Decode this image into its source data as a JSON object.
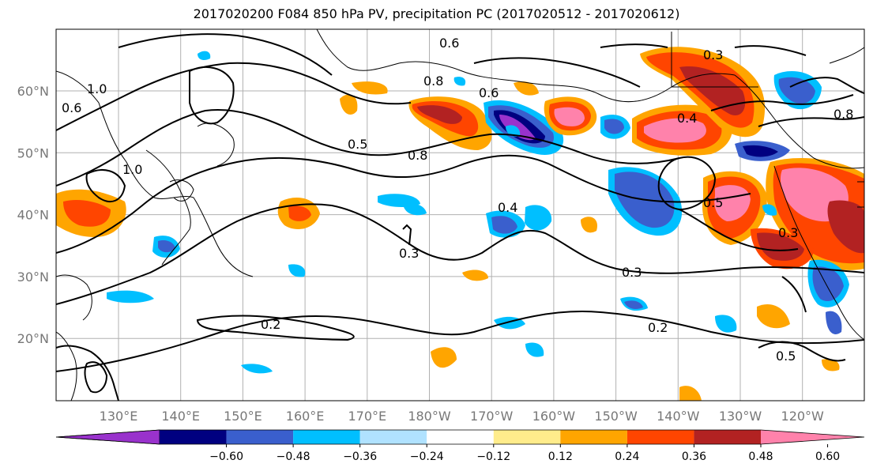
{
  "title": "2017020200 F084 850 hPa PV, precipitation PC (2017020512 - 2017020612)",
  "map": {
    "lon_ticks": [
      "130°E",
      "140°E",
      "150°E",
      "160°E",
      "170°E",
      "180°W",
      "170°W",
      "160°W",
      "150°W",
      "140°W",
      "130°W",
      "120°W"
    ],
    "lat_ticks": [
      "60°N",
      "50°N",
      "40°N",
      "30°N",
      "20°N"
    ],
    "contour_labels": [
      "0.6",
      "0.6",
      "0.8",
      "0.8",
      "1.0",
      "0.5",
      "0.3",
      "0.3",
      "0.2",
      "0.2",
      "0.5",
      "0.4",
      "0.4",
      "0.3",
      "0.5",
      "0.3",
      "0.8",
      "1.0",
      "0.6"
    ],
    "colors": {
      "purple": "#9932cc",
      "navy": "#000080",
      "royal": "#3a5fcd",
      "sky": "#00bfff",
      "pale_blue": "#b0e2ff",
      "yellow": "#ffec8b",
      "orange": "#ffa500",
      "red_orange": "#ff4500",
      "firebrick": "#b22222",
      "pink": "#ff82ab"
    }
  },
  "colorbar": {
    "labels": [
      "−0.60",
      "−0.48",
      "−0.36",
      "−0.24",
      "−0.12",
      "0.12",
      "0.24",
      "0.36",
      "0.48",
      "0.60"
    ],
    "colors": [
      "#9932cc",
      "#000080",
      "#3a5fcd",
      "#00bfff",
      "#b0e2ff",
      "#ffffff",
      "#ffec8b",
      "#ffa500",
      "#ff4500",
      "#b22222",
      "#ff82ab"
    ]
  }
}
